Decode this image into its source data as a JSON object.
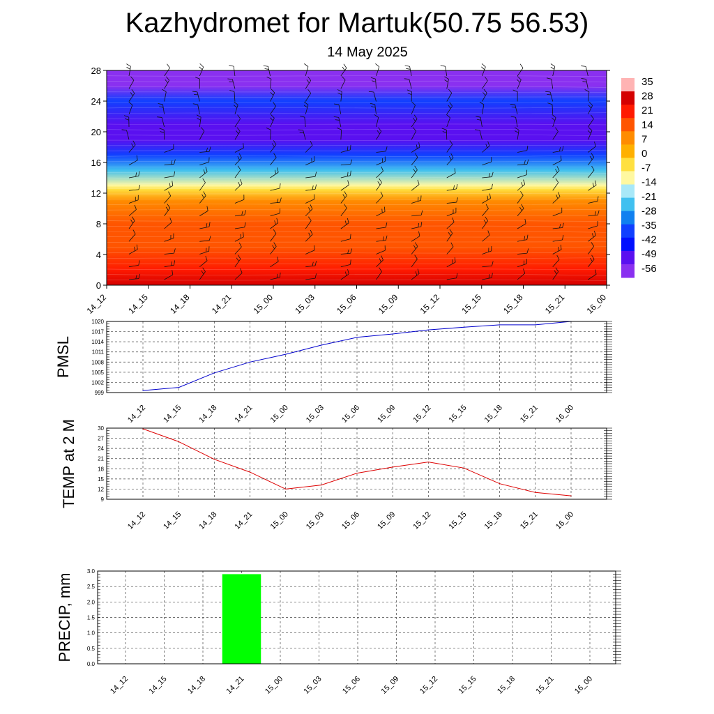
{
  "header": {
    "title": "Kazhydromet for Martuk(50.75 56.53)",
    "date": "14 May 2025"
  },
  "colors": {
    "pmsl_line": "#0000cc",
    "temp_line": "#dd0000",
    "precip_bar": "#00ff00"
  },
  "chart_data": [
    {
      "type": "heatmap",
      "title": "",
      "x_labels": [
        "14_12",
        "14_15",
        "14_18",
        "14_21",
        "15_00",
        "15_03",
        "15_06",
        "15_09",
        "15_12",
        "15_15",
        "15_18",
        "15_21",
        "16_00"
      ],
      "y_ticks": [
        0,
        4,
        8,
        12,
        16,
        20,
        24,
        28
      ],
      "ylim": [
        0,
        28
      ],
      "temperature_by_height": [
        {
          "height": 0,
          "temp": 28
        },
        {
          "height": 2,
          "temp": 24
        },
        {
          "height": 5,
          "temp": 20
        },
        {
          "height": 8,
          "temp": 14
        },
        {
          "height": 11,
          "temp": 7
        },
        {
          "height": 12.5,
          "temp": -5
        },
        {
          "height": 13,
          "temp": -14
        },
        {
          "height": 15,
          "temp": -28
        },
        {
          "height": 17,
          "temp": -42
        },
        {
          "height": 19,
          "temp": -56
        },
        {
          "height": 21,
          "temp": -52
        },
        {
          "height": 24,
          "temp": -42
        },
        {
          "height": 26,
          "temp": -60
        },
        {
          "height": 28,
          "temp": -62
        }
      ],
      "colorbar_labels": [
        "35",
        "28",
        "21",
        "14",
        "7",
        "0",
        "-7",
        "-14",
        "-21",
        "-28",
        "-35",
        "-42",
        "-49",
        "-56"
      ],
      "colorbar_colors": [
        "#ffb3b3",
        "#d40000",
        "#ff1a00",
        "#ff5500",
        "#ff8c00",
        "#ffb000",
        "#ffe040",
        "#fff8a0",
        "#a8e8f8",
        "#40c0f0",
        "#1080f0",
        "#1040ff",
        "#0010ff",
        "#5a10f0",
        "#8a30f0"
      ],
      "wind_barbs": true
    },
    {
      "type": "line",
      "ylabel": "PMSL",
      "x_labels": [
        "14_12",
        "14_15",
        "14_18",
        "14_21",
        "15_00",
        "15_03",
        "15_06",
        "15_09",
        "15_12",
        "15_15",
        "15_18",
        "15_21",
        "16_00"
      ],
      "y_ticks": [
        999,
        1002,
        1005,
        1008,
        1011,
        1014,
        1017,
        1020
      ],
      "ylim": [
        999,
        1020
      ],
      "values": [
        999.6,
        1000.5,
        1004.8,
        1008.0,
        1010.3,
        1013.0,
        1015.3,
        1016.3,
        1017.5,
        1018.3,
        1019.0,
        1019.0,
        1020.0
      ]
    },
    {
      "type": "line",
      "ylabel": "TEMP at 2 M",
      "x_labels": [
        "14_12",
        "14_15",
        "14_18",
        "14_21",
        "15_00",
        "15_03",
        "15_06",
        "15_09",
        "15_12",
        "15_15",
        "15_18",
        "15_21",
        "16_00"
      ],
      "y_ticks": [
        9,
        12,
        15,
        18,
        21,
        24,
        27,
        30
      ],
      "ylim": [
        9,
        30
      ],
      "values": [
        29.8,
        26.0,
        20.8,
        17.0,
        12.0,
        13.2,
        16.7,
        18.5,
        20.0,
        18.2,
        13.6,
        11.0,
        10.0
      ]
    },
    {
      "type": "bar",
      "ylabel": "PRECIP, mm",
      "x_labels": [
        "14_12",
        "14_15",
        "14_18",
        "14_21",
        "15_00",
        "15_03",
        "15_06",
        "15_09",
        "15_12",
        "15_15",
        "15_18",
        "15_21",
        "16_00"
      ],
      "y_ticks": [
        "0.0",
        "0.5",
        "1.0",
        "1.5",
        "2.0",
        "2.5",
        "3.0"
      ],
      "ylim": [
        0,
        3.0
      ],
      "values": [
        0,
        0,
        0,
        2.9,
        0,
        0,
        0,
        0,
        0,
        0,
        0,
        0,
        0
      ]
    }
  ]
}
